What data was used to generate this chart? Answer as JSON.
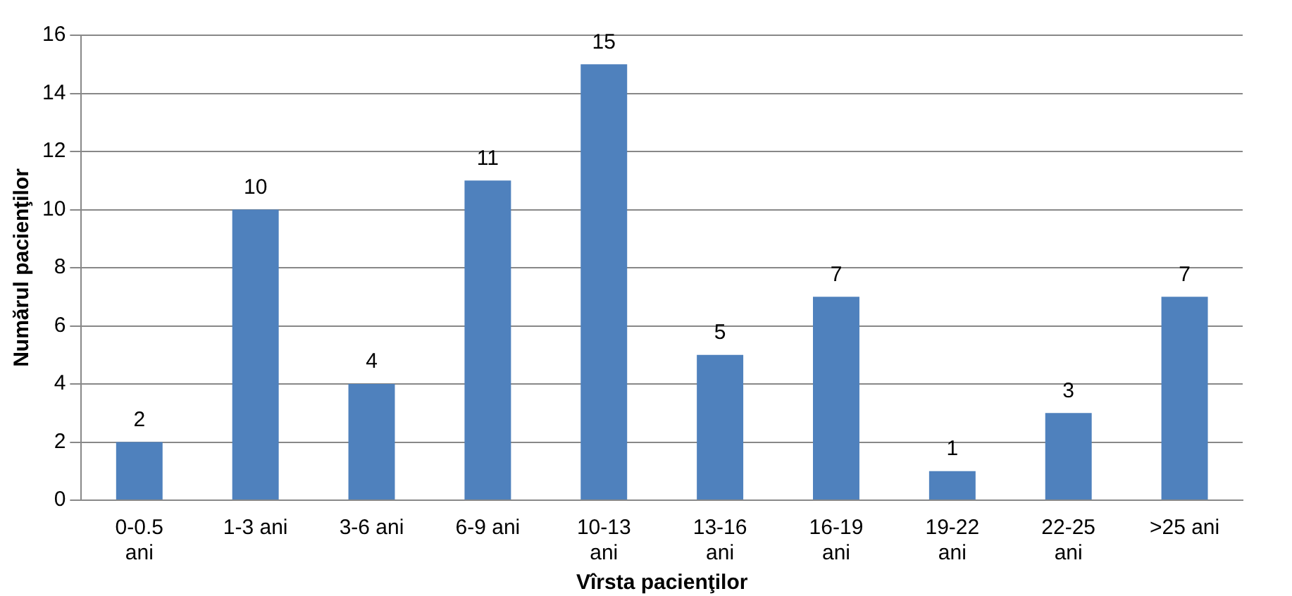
{
  "chart_data": {
    "type": "bar",
    "xlabel": "Vîrsta pacienţilor",
    "ylabel": "Numărul pacienţilor",
    "categories": [
      "0-0.5 ani",
      "1-3 ani",
      "3-6 ani",
      "6-9 ani",
      "10-13 ani",
      "13-16 ani",
      "16-19 ani",
      "19-22 ani",
      "22-25 ani",
      ">25 ani"
    ],
    "values": [
      2,
      10,
      4,
      11,
      15,
      5,
      7,
      1,
      3,
      7
    ],
    "color": "#4f81bd",
    "ylim": [
      0,
      16
    ],
    "yticks": [
      0,
      2,
      4,
      6,
      8,
      10,
      12,
      14,
      16
    ],
    "grid": "y",
    "data_labels": true,
    "legend": false
  }
}
